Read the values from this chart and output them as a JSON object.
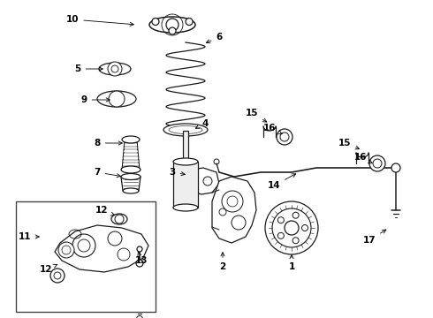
{
  "bg_color": "#ffffff",
  "line_color": "#1a1a1a",
  "lw": 0.9,
  "figsize": [
    4.9,
    3.6
  ],
  "dpi": 100,
  "labels": [
    [
      "10",
      82,
      22,
      155,
      28,
      "right"
    ],
    [
      "5",
      88,
      78,
      120,
      78,
      "right"
    ],
    [
      "6",
      248,
      42,
      230,
      50,
      "left"
    ],
    [
      "9",
      95,
      113,
      128,
      113,
      "right"
    ],
    [
      "8",
      110,
      162,
      142,
      162,
      "right"
    ],
    [
      "7",
      110,
      195,
      140,
      200,
      "right"
    ],
    [
      "4",
      232,
      140,
      218,
      147,
      "left"
    ],
    [
      "3",
      195,
      195,
      213,
      198,
      "right"
    ],
    [
      "2",
      252,
      302,
      252,
      282,
      "center"
    ],
    [
      "1",
      330,
      302,
      330,
      285,
      "center"
    ],
    [
      "14",
      310,
      210,
      338,
      195,
      "right"
    ],
    [
      "15",
      285,
      128,
      305,
      140,
      "right"
    ],
    [
      "16",
      305,
      145,
      320,
      152,
      "right"
    ],
    [
      "15",
      390,
      162,
      410,
      170,
      "right"
    ],
    [
      "16",
      408,
      178,
      422,
      185,
      "right"
    ],
    [
      "17",
      418,
      272,
      440,
      258,
      "right"
    ],
    [
      "11",
      28,
      268,
      48,
      268,
      "right"
    ],
    [
      "12",
      115,
      238,
      133,
      245,
      "right"
    ],
    [
      "12",
      52,
      305,
      68,
      298,
      "right"
    ],
    [
      "13",
      160,
      295,
      155,
      282,
      "left"
    ]
  ]
}
